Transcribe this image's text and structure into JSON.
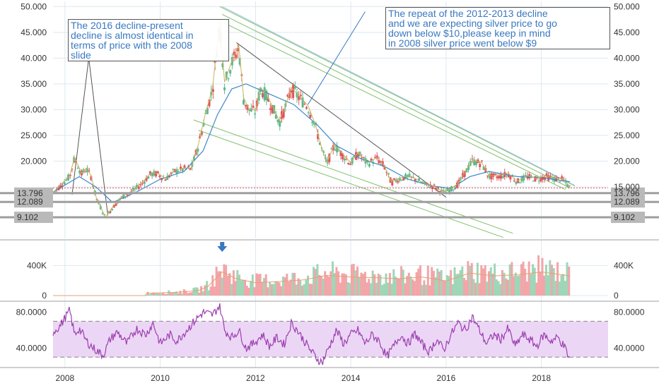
{
  "chart_data": [
    {
      "type": "candlestick",
      "name": "price",
      "right_ticks": [
        "50.000",
        "45.000",
        "40.000",
        "35.000",
        "30.000",
        "25.000",
        "20.000",
        "15.000"
      ],
      "left_ticks": [
        "50.000",
        "45.000",
        "40.000",
        "35.000",
        "30.000",
        "25.000",
        "20.000"
      ],
      "ylim": [
        5,
        51
      ],
      "price_path": [
        [
          2007.75,
          13.8
        ],
        [
          2008.1,
          17.0
        ],
        [
          2008.2,
          20.5
        ],
        [
          2008.35,
          17.5
        ],
        [
          2008.45,
          18.5
        ],
        [
          2008.55,
          17.0
        ],
        [
          2008.65,
          13.0
        ],
        [
          2008.75,
          11.0
        ],
        [
          2008.85,
          9.0
        ],
        [
          2009.0,
          11.0
        ],
        [
          2009.2,
          13.0
        ],
        [
          2009.4,
          14.0
        ],
        [
          2009.6,
          15.5
        ],
        [
          2009.8,
          17.5
        ],
        [
          2009.95,
          17.5
        ],
        [
          2010.1,
          16.5
        ],
        [
          2010.3,
          18.0
        ],
        [
          2010.5,
          18.5
        ],
        [
          2010.65,
          18.5
        ],
        [
          2010.8,
          23.0
        ],
        [
          2010.95,
          29.0
        ],
        [
          2011.1,
          34.0
        ],
        [
          2011.25,
          47.0
        ],
        [
          2011.35,
          35.0
        ],
        [
          2011.5,
          39.0
        ],
        [
          2011.65,
          42.0
        ],
        [
          2011.75,
          32.0
        ],
        [
          2011.85,
          30.0
        ],
        [
          2012.0,
          29.5
        ],
        [
          2012.1,
          34.0
        ],
        [
          2012.2,
          33.0
        ],
        [
          2012.35,
          30.5
        ],
        [
          2012.5,
          27.5
        ],
        [
          2012.65,
          31.0
        ],
        [
          2012.75,
          34.0
        ],
        [
          2012.95,
          32.0
        ],
        [
          2013.1,
          30.5
        ],
        [
          2013.25,
          27.0
        ],
        [
          2013.4,
          22.0
        ],
        [
          2013.5,
          19.5
        ],
        [
          2013.65,
          23.0
        ],
        [
          2013.8,
          21.5
        ],
        [
          2014.0,
          19.5
        ],
        [
          2014.15,
          21.5
        ],
        [
          2014.35,
          19.5
        ],
        [
          2014.55,
          20.5
        ],
        [
          2014.7,
          19.0
        ],
        [
          2014.85,
          15.8
        ],
        [
          2015.0,
          16.5
        ],
        [
          2015.2,
          17.0
        ],
        [
          2015.35,
          16.5
        ],
        [
          2015.55,
          15.5
        ],
        [
          2015.75,
          15.0
        ],
        [
          2015.95,
          13.9
        ],
        [
          2016.1,
          14.5
        ],
        [
          2016.25,
          15.5
        ],
        [
          2016.45,
          18.5
        ],
        [
          2016.55,
          20.0
        ],
        [
          2016.75,
          19.5
        ],
        [
          2016.9,
          17.0
        ],
        [
          2017.1,
          17.0
        ],
        [
          2017.3,
          17.5
        ],
        [
          2017.5,
          16.0
        ],
        [
          2017.7,
          17.0
        ],
        [
          2017.9,
          16.5
        ],
        [
          2018.1,
          17.0
        ],
        [
          2018.3,
          16.5
        ],
        [
          2018.45,
          16.4
        ],
        [
          2018.6,
          14.8
        ]
      ],
      "ma_path": [
        [
          2007.75,
          14.0
        ],
        [
          2008.3,
          17.0
        ],
        [
          2008.65,
          15.0
        ],
        [
          2009.0,
          12.0
        ],
        [
          2009.5,
          14.0
        ],
        [
          2010.0,
          16.5
        ],
        [
          2010.5,
          18.0
        ],
        [
          2010.9,
          22.0
        ],
        [
          2011.2,
          29.0
        ],
        [
          2011.5,
          34.0
        ],
        [
          2011.8,
          35.0
        ],
        [
          2012.3,
          33.0
        ],
        [
          2012.8,
          31.0
        ],
        [
          2013.3,
          27.0
        ],
        [
          2013.7,
          23.0
        ],
        [
          2014.2,
          20.5
        ],
        [
          2014.7,
          19.0
        ],
        [
          2015.2,
          16.5
        ],
        [
          2015.7,
          15.2
        ],
        [
          2016.1,
          14.7
        ],
        [
          2016.5,
          17.0
        ],
        [
          2016.9,
          18.0
        ],
        [
          2017.5,
          17.0
        ],
        [
          2018.0,
          16.8
        ],
        [
          2018.6,
          16.0
        ]
      ],
      "horizontal_levels": [
        {
          "value": 13.796,
          "label": "13.796"
        },
        {
          "value": 12.089,
          "label": "12.089"
        },
        {
          "value": 9.102,
          "label": "9.102"
        }
      ],
      "current_price_line": 14.8,
      "drawings": [
        {
          "kind": "spike",
          "points": [
            [
              2008.15,
              13.5
            ],
            [
              2008.5,
              40.0
            ],
            [
              2008.9,
              9.5
            ]
          ],
          "color": "#555555"
        },
        {
          "kind": "trendline",
          "points": [
            [
              2011.6,
              43.0
            ],
            [
              2016.0,
              13.0
            ]
          ],
          "color": "#555555"
        },
        {
          "kind": "channel",
          "points": [
            [
              2011.25,
              50.0
            ],
            [
              2018.7,
              15.2
            ]
          ],
          "color": "#7fc06c"
        },
        {
          "kind": "channel",
          "points": [
            [
              2011.3,
              48.5
            ],
            [
              2018.6,
              14.8
            ]
          ],
          "color": "#7fc06c"
        },
        {
          "kind": "channel",
          "points": [
            [
              2011.3,
              47.0
            ],
            [
              2018.5,
              14.5
            ]
          ],
          "color": "#7fc06c"
        },
        {
          "kind": "channel",
          "points": [
            [
              2010.8,
              26.0
            ],
            [
              2017.2,
              5.2
            ]
          ],
          "color": "#7fc06c"
        },
        {
          "kind": "channel",
          "points": [
            [
              2010.7,
              28.0
            ],
            [
              2017.4,
              6.0
            ]
          ],
          "color": "#7fc06c"
        },
        {
          "kind": "ray",
          "points": [
            [
              2011.3,
              50.0
            ],
            [
              2018.7,
              15.3
            ]
          ],
          "color": "#9cc3e6"
        },
        {
          "kind": "callout",
          "points": [
            [
              2013.1,
              31.0
            ],
            [
              2014.3,
              49.0
            ]
          ],
          "color": "#3a78c0"
        }
      ],
      "annotations": [
        "The 2016 decline-present\ndecline is almost identical in\nterms of price with the 2008\nslide",
        "The repeat of the 2012-2013 decline\nand we are expecting silver price to go\ndown below $10,please keep in mind\nin 2008 silver price went below $9"
      ]
    },
    {
      "type": "bar",
      "name": "volume",
      "ticks": [
        "400K",
        "0"
      ],
      "ylim": [
        0,
        650
      ],
      "unit": "K",
      "start_year": 2009.7,
      "end_year": 2018.6,
      "bars": [
        [
          2009.7,
          40
        ],
        [
          2010.0,
          50
        ],
        [
          2010.4,
          60
        ],
        [
          2010.8,
          90
        ],
        [
          2011.0,
          160
        ],
        [
          2011.3,
          420
        ],
        [
          2011.6,
          300
        ],
        [
          2012.0,
          230
        ],
        [
          2012.5,
          250
        ],
        [
          2013.0,
          280
        ],
        [
          2013.5,
          360
        ],
        [
          2014.0,
          330
        ],
        [
          2014.5,
          320
        ],
        [
          2015.0,
          300
        ],
        [
          2015.5,
          330
        ],
        [
          2016.0,
          260
        ],
        [
          2016.5,
          400
        ],
        [
          2017.0,
          350
        ],
        [
          2017.5,
          370
        ],
        [
          2018.0,
          420
        ],
        [
          2018.6,
          350
        ]
      ],
      "peak_marker_year": 2011.3,
      "marker_color": "#3a78c0"
    },
    {
      "type": "line",
      "name": "rsi",
      "ticks": [
        "80.0000",
        "40.0000"
      ],
      "ylim": [
        20,
        90
      ],
      "band": [
        30,
        70
      ],
      "color": "#9b3fb0",
      "band_color": "#ecd6f5",
      "series": [
        [
          2007.75,
          58
        ],
        [
          2007.9,
          65
        ],
        [
          2008.1,
          82
        ],
        [
          2008.2,
          55
        ],
        [
          2008.3,
          62
        ],
        [
          2008.45,
          48
        ],
        [
          2008.6,
          40
        ],
        [
          2008.8,
          32
        ],
        [
          2008.95,
          50
        ],
        [
          2009.1,
          58
        ],
        [
          2009.3,
          45
        ],
        [
          2009.5,
          62
        ],
        [
          2009.7,
          55
        ],
        [
          2009.85,
          68
        ],
        [
          2010.0,
          45
        ],
        [
          2010.2,
          55
        ],
        [
          2010.35,
          48
        ],
        [
          2010.55,
          60
        ],
        [
          2010.75,
          72
        ],
        [
          2010.9,
          80
        ],
        [
          2011.1,
          77
        ],
        [
          2011.25,
          88
        ],
        [
          2011.35,
          60
        ],
        [
          2011.5,
          52
        ],
        [
          2011.65,
          60
        ],
        [
          2011.8,
          40
        ],
        [
          2011.95,
          45
        ],
        [
          2012.15,
          55
        ],
        [
          2012.3,
          42
        ],
        [
          2012.45,
          52
        ],
        [
          2012.6,
          44
        ],
        [
          2012.75,
          68
        ],
        [
          2012.85,
          62
        ],
        [
          2013.0,
          50
        ],
        [
          2013.15,
          38
        ],
        [
          2013.3,
          28
        ],
        [
          2013.4,
          24
        ],
        [
          2013.55,
          42
        ],
        [
          2013.7,
          60
        ],
        [
          2013.85,
          45
        ],
        [
          2014.0,
          55
        ],
        [
          2014.15,
          60
        ],
        [
          2014.3,
          45
        ],
        [
          2014.45,
          55
        ],
        [
          2014.6,
          48
        ],
        [
          2014.75,
          30
        ],
        [
          2014.9,
          42
        ],
        [
          2015.05,
          55
        ],
        [
          2015.2,
          45
        ],
        [
          2015.35,
          56
        ],
        [
          2015.5,
          44
        ],
        [
          2015.65,
          36
        ],
        [
          2015.8,
          50
        ],
        [
          2015.95,
          38
        ],
        [
          2016.1,
          55
        ],
        [
          2016.25,
          68
        ],
        [
          2016.4,
          60
        ],
        [
          2016.55,
          75
        ],
        [
          2016.7,
          60
        ],
        [
          2016.85,
          45
        ],
        [
          2017.0,
          55
        ],
        [
          2017.15,
          50
        ],
        [
          2017.3,
          62
        ],
        [
          2017.45,
          42
        ],
        [
          2017.6,
          55
        ],
        [
          2017.75,
          50
        ],
        [
          2017.9,
          42
        ],
        [
          2018.05,
          55
        ],
        [
          2018.2,
          48
        ],
        [
          2018.35,
          52
        ],
        [
          2018.5,
          40
        ],
        [
          2018.6,
          26
        ]
      ]
    }
  ],
  "x_axis": {
    "xlim": [
      2007.75,
      2019.4
    ],
    "ticks": [
      {
        "value": 2008,
        "label": "2008"
      },
      {
        "value": 2010,
        "label": "2010"
      },
      {
        "value": 2012,
        "label": "2012"
      },
      {
        "value": 2014,
        "label": "2014"
      },
      {
        "value": 2016,
        "label": "2016"
      },
      {
        "value": 2018,
        "label": "2018"
      }
    ]
  },
  "colors": {
    "up": "#5cb88e",
    "down": "#e0545a",
    "ma": "#3a88c9",
    "grid": "#dde8f0",
    "label_box": "#b9b9b9",
    "level_line": "#9e9e9e"
  }
}
